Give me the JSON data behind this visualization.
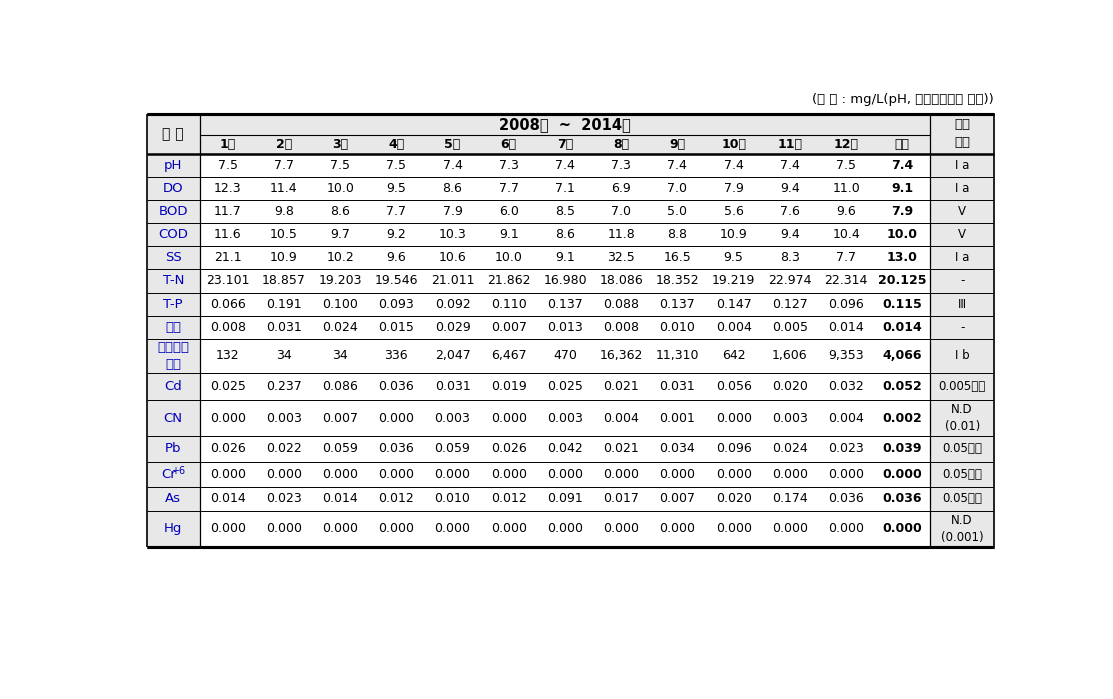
{
  "unit_text": "(단 위 : mg/L(pH, 총대장균군수 제외))",
  "year_header": "2008년  ~  2014년",
  "months": [
    "1월",
    "2월",
    "3월",
    "4월",
    "5월",
    "6월",
    "7월",
    "8월",
    "9월",
    "10월",
    "11월",
    "12월",
    "평균"
  ],
  "rows": [
    {
      "name": "pH",
      "values": [
        "7.5",
        "7.7",
        "7.5",
        "7.5",
        "7.4",
        "7.3",
        "7.4",
        "7.3",
        "7.4",
        "7.4",
        "7.4",
        "7.5",
        "7.4"
      ],
      "env": "Ⅰ a"
    },
    {
      "name": "DO",
      "values": [
        "12.3",
        "11.4",
        "10.0",
        "9.5",
        "8.6",
        "7.7",
        "7.1",
        "6.9",
        "7.0",
        "7.9",
        "9.4",
        "11.0",
        "9.1"
      ],
      "env": "Ⅰ a"
    },
    {
      "name": "BOD",
      "values": [
        "11.7",
        "9.8",
        "8.6",
        "7.7",
        "7.9",
        "6.0",
        "8.5",
        "7.0",
        "5.0",
        "5.6",
        "7.6",
        "9.6",
        "7.9"
      ],
      "env": "V"
    },
    {
      "name": "COD",
      "values": [
        "11.6",
        "10.5",
        "9.7",
        "9.2",
        "10.3",
        "9.1",
        "8.6",
        "11.8",
        "8.8",
        "10.9",
        "9.4",
        "10.4",
        "10.0"
      ],
      "env": "V"
    },
    {
      "name": "SS",
      "values": [
        "21.1",
        "10.9",
        "10.2",
        "9.6",
        "10.6",
        "10.0",
        "9.1",
        "32.5",
        "16.5",
        "9.5",
        "8.3",
        "7.7",
        "13.0"
      ],
      "env": "Ⅰ a"
    },
    {
      "name": "T-N",
      "values": [
        "23.101",
        "18.857",
        "19.203",
        "19.546",
        "21.011",
        "21.862",
        "16.980",
        "18.086",
        "18.352",
        "19.219",
        "22.974",
        "22.314",
        "20.125"
      ],
      "env": "-"
    },
    {
      "name": "T-P",
      "values": [
        "0.066",
        "0.191",
        "0.100",
        "0.093",
        "0.092",
        "0.110",
        "0.137",
        "0.088",
        "0.137",
        "0.147",
        "0.127",
        "0.096",
        "0.115"
      ],
      "env": "Ⅲ"
    },
    {
      "name": "페놀",
      "values": [
        "0.008",
        "0.031",
        "0.024",
        "0.015",
        "0.029",
        "0.007",
        "0.013",
        "0.008",
        "0.010",
        "0.004",
        "0.005",
        "0.014",
        "0.014"
      ],
      "env": "-"
    },
    {
      "name": "총대장균\n군수",
      "values": [
        "132",
        "34",
        "34",
        "336",
        "2,047",
        "6,467",
        "470",
        "16,362",
        "11,310",
        "642",
        "1,606",
        "9,353",
        "4,066"
      ],
      "env": "Ⅰ b"
    },
    {
      "name": "Cd",
      "values": [
        "0.025",
        "0.237",
        "0.086",
        "0.036",
        "0.031",
        "0.019",
        "0.025",
        "0.021",
        "0.031",
        "0.056",
        "0.020",
        "0.032",
        "0.052"
      ],
      "env": "0.005이하"
    },
    {
      "name": "CN",
      "values": [
        "0.000",
        "0.003",
        "0.007",
        "0.000",
        "0.003",
        "0.000",
        "0.003",
        "0.004",
        "0.001",
        "0.000",
        "0.003",
        "0.004",
        "0.002"
      ],
      "env": "N.D\n(0.01)"
    },
    {
      "name": "Pb",
      "values": [
        "0.026",
        "0.022",
        "0.059",
        "0.036",
        "0.059",
        "0.026",
        "0.042",
        "0.021",
        "0.034",
        "0.096",
        "0.024",
        "0.023",
        "0.039"
      ],
      "env": "0.05이하"
    },
    {
      "name": "Cr+6",
      "values": [
        "0.000",
        "0.000",
        "0.000",
        "0.000",
        "0.000",
        "0.000",
        "0.000",
        "0.000",
        "0.000",
        "0.000",
        "0.000",
        "0.000",
        "0.000"
      ],
      "env": "0.05이하"
    },
    {
      "name": "As",
      "values": [
        "0.014",
        "0.023",
        "0.014",
        "0.012",
        "0.010",
        "0.012",
        "0.091",
        "0.017",
        "0.007",
        "0.020",
        "0.174",
        "0.036",
        "0.036"
      ],
      "env": "0.05이하"
    },
    {
      "name": "Hg",
      "values": [
        "0.000",
        "0.000",
        "0.000",
        "0.000",
        "0.000",
        "0.000",
        "0.000",
        "0.000",
        "0.000",
        "0.000",
        "0.000",
        "0.000",
        "0.000"
      ],
      "env": "N.D\n(0.001)"
    }
  ],
  "bg_color": "#e8e8e8",
  "cell_bg": "#ffffff",
  "name_color": "#0000bb",
  "black": "#000000",
  "header_lw": 2.2,
  "row_lw": 0.7,
  "thick_lw": 1.8,
  "fig_w": 11.13,
  "fig_h": 6.99,
  "dpi": 100
}
